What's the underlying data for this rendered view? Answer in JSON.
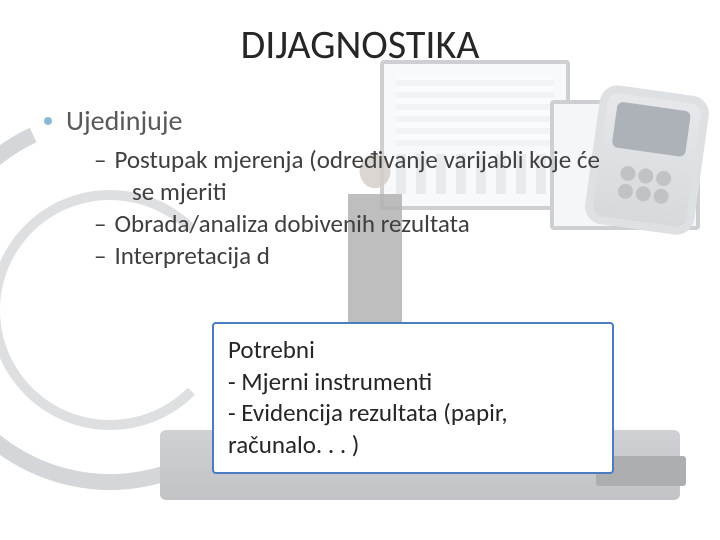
{
  "title": "DIJAGNOSTIKA",
  "bullet": {
    "dot_color": "#8ab9d8",
    "label": "Ujedinjuje"
  },
  "sub_items": [
    {
      "dash": "–",
      "text_a": "Postupak mjerenja ",
      "text_b": "(određivanje varijabli koje će",
      "text_c": "se mjeriti"
    },
    {
      "dash": "–",
      "text_a": "Obrada/analiza dobivenih rezultata"
    },
    {
      "dash": "–",
      "text_a": "Interpretacija d"
    }
  ],
  "callout": {
    "bg": "#ffffff",
    "border": "#4a7dbf",
    "text_color": "#262626",
    "lines": [
      "Potrebni",
      "- Mjerni instrumenti",
      "- Evidencija rezultata (papir,",
      "računalo. . . )"
    ]
  },
  "colors": {
    "title": "#262626",
    "body": "#3f3f3f",
    "bullet_text": "#595959"
  }
}
